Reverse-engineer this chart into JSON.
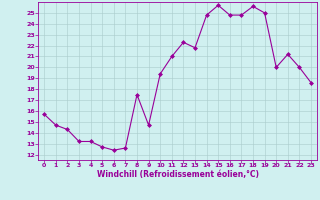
{
  "x": [
    0,
    1,
    2,
    3,
    4,
    5,
    6,
    7,
    8,
    9,
    10,
    11,
    12,
    13,
    14,
    15,
    16,
    17,
    18,
    19,
    20,
    21,
    22,
    23
  ],
  "y": [
    15.7,
    14.7,
    14.3,
    13.2,
    13.2,
    12.7,
    12.4,
    12.6,
    17.5,
    14.7,
    19.4,
    21.0,
    22.3,
    21.8,
    24.8,
    25.7,
    24.8,
    24.8,
    25.6,
    25.0,
    20.0,
    21.2,
    20.0,
    18.6
  ],
  "line_color": "#990099",
  "marker": "D",
  "marker_size": 2,
  "background_color": "#d0f0f0",
  "grid_color": "#aacccc",
  "xlabel": "Windchill (Refroidissement éolien,°C)",
  "xlabel_color": "#990099",
  "tick_color": "#990099",
  "ylim": [
    11.5,
    26.0
  ],
  "xlim": [
    -0.5,
    23.5
  ],
  "yticks": [
    12,
    13,
    14,
    15,
    16,
    17,
    18,
    19,
    20,
    21,
    22,
    23,
    24,
    25
  ],
  "xticks": [
    0,
    1,
    2,
    3,
    4,
    5,
    6,
    7,
    8,
    9,
    10,
    11,
    12,
    13,
    14,
    15,
    16,
    17,
    18,
    19,
    20,
    21,
    22,
    23
  ]
}
